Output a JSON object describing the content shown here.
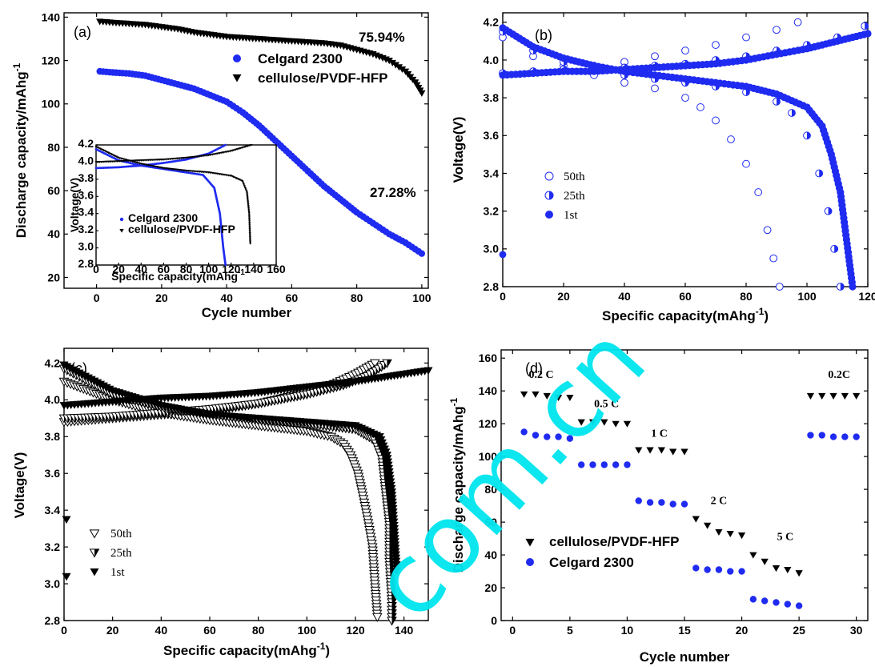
{
  "colors": {
    "blue": "#1f2bf0",
    "black": "#000000",
    "watermark": "#00e5ee"
  },
  "watermark": {
    "text": "com.cn"
  },
  "chart_data": [
    {
      "id": "a",
      "type": "scatter",
      "panel_label": "(a)",
      "xlabel": "Cycle number",
      "ylabel": "Discharge capacity/mAhg",
      "ylabel_sup": "-1",
      "xlim": [
        -10,
        102
      ],
      "ylim": [
        15,
        142
      ],
      "xticks": [
        0,
        20,
        40,
        60,
        80,
        100
      ],
      "yticks": [
        20,
        40,
        60,
        80,
        100,
        120,
        140
      ],
      "annotations": [
        {
          "text": "75.94%",
          "x": 90,
          "y": 132
        },
        {
          "text": "27.28%",
          "x": 90,
          "y": 55
        }
      ],
      "legend": [
        {
          "label": "Celgard 2300",
          "marker": "circle",
          "color": "#1f2bf0"
        },
        {
          "label": "cellulose/PVDF-HFP",
          "marker": "tri-down",
          "color": "#000000"
        }
      ],
      "series": [
        {
          "name": "Celgard 2300",
          "marker": "circle",
          "color": "#1f2bf0",
          "mode": "dense",
          "x": [
            1,
            5,
            10,
            15,
            20,
            25,
            30,
            35,
            40,
            45,
            50,
            55,
            60,
            65,
            70,
            75,
            80,
            85,
            90,
            95,
            100
          ],
          "y": [
            115,
            114.5,
            114,
            113,
            111,
            109,
            107,
            104,
            101,
            96,
            90,
            83,
            76,
            69,
            62,
            56,
            50,
            45,
            40,
            36,
            31
          ]
        },
        {
          "name": "cellulose/PVDF-HFP",
          "marker": "tri-down",
          "color": "#000000",
          "mode": "dense",
          "x": [
            1,
            5,
            10,
            15,
            20,
            25,
            30,
            35,
            40,
            45,
            50,
            55,
            60,
            65,
            70,
            75,
            80,
            85,
            90,
            95,
            98,
            100
          ],
          "y": [
            138,
            137.5,
            137,
            136.5,
            135.5,
            134.5,
            133,
            132,
            131,
            130.5,
            130,
            129.5,
            129,
            128.5,
            128,
            127,
            125,
            123,
            120,
            115,
            110,
            105
          ]
        }
      ],
      "inset": {
        "xlabel": "Specific capacity(mAhg",
        "xlabel_sup": "-1",
        "ylabel": "Voltage(V)",
        "xlim": [
          0,
          160
        ],
        "ylim": [
          2.8,
          4.2
        ],
        "xticks": [
          0,
          20,
          40,
          60,
          80,
          100,
          120,
          140,
          160
        ],
        "yticks": [
          2.8,
          3.0,
          3.2,
          3.4,
          3.6,
          3.8,
          4.0,
          4.2
        ],
        "legend": [
          {
            "label": "Celgard 2300",
            "marker": "circle",
            "color": "#1f2bf0"
          },
          {
            "label": "cellulose/PVDF-HFP",
            "marker": "tri-down",
            "color": "#000000"
          }
        ],
        "series": [
          {
            "name": "Celgard 2300 charge",
            "color": "#1f2bf0",
            "marker": "circle",
            "mode": "dense",
            "x": [
              0,
              20,
              40,
              60,
              80,
              100,
              115
            ],
            "y": [
              3.93,
              3.94,
              3.96,
              3.99,
              4.03,
              4.1,
              4.2
            ]
          },
          {
            "name": "Celgard 2300 discharge",
            "color": "#1f2bf0",
            "marker": "circle",
            "mode": "dense",
            "x": [
              0,
              20,
              40,
              60,
              80,
              95,
              105,
              110,
              113,
              115
            ],
            "y": [
              4.15,
              4.02,
              3.96,
              3.92,
              3.88,
              3.85,
              3.7,
              3.4,
              3.0,
              2.8
            ]
          },
          {
            "name": "cellulose/PVDF-HFP charge",
            "color": "#000000",
            "marker": "tri-down",
            "mode": "dense",
            "x": [
              0,
              20,
              40,
              60,
              80,
              100,
              120,
              138
            ],
            "y": [
              4.0,
              4.01,
              4.02,
              4.03,
              4.05,
              4.08,
              4.13,
              4.2
            ]
          },
          {
            "name": "cellulose/PVDF-HFP discharge",
            "color": "#000000",
            "marker": "tri-down",
            "mode": "dense",
            "x": [
              0,
              20,
              40,
              60,
              80,
              100,
              120,
              130,
              134,
              136,
              137
            ],
            "y": [
              4.18,
              4.05,
              3.98,
              3.93,
              3.9,
              3.88,
              3.84,
              3.78,
              3.65,
              3.4,
              3.05
            ]
          }
        ]
      }
    },
    {
      "id": "b",
      "type": "scatter",
      "panel_label": "(b)",
      "xlabel": "Specific capacity(mAhg",
      "xlabel_sup": "-1",
      "xlabel_tail": ")",
      "ylabel": "Voltage(V)",
      "xlim": [
        0,
        120
      ],
      "ylim": [
        2.8,
        4.25
      ],
      "xticks": [
        0,
        20,
        40,
        60,
        80,
        100,
        120
      ],
      "yticks": [
        2.8,
        3.0,
        3.2,
        3.4,
        3.6,
        3.8,
        4.0,
        4.2
      ],
      "legend": [
        {
          "label": "50th",
          "marker": "circle-open"
        },
        {
          "label": "25th",
          "marker": "circle-half"
        },
        {
          "label": "1st",
          "marker": "circle"
        }
      ],
      "series": [
        {
          "name": "50th charge",
          "marker": "circle-open",
          "color": "#1f2bf0",
          "mode": "sparse",
          "x": [
            0,
            10,
            20,
            30,
            40,
            50,
            60,
            70,
            80,
            90,
            97
          ],
          "y": [
            3.93,
            3.94,
            3.95,
            3.97,
            3.99,
            4.02,
            4.05,
            4.08,
            4.12,
            4.16,
            4.2
          ]
        },
        {
          "name": "50th discharge",
          "marker": "circle-open",
          "color": "#1f2bf0",
          "mode": "sparse",
          "x": [
            0,
            10,
            20,
            30,
            40,
            50,
            60,
            65,
            70,
            75,
            80,
            84,
            87,
            89,
            91
          ],
          "y": [
            4.12,
            4.02,
            3.97,
            3.92,
            3.88,
            3.85,
            3.8,
            3.75,
            3.68,
            3.58,
            3.45,
            3.3,
            3.1,
            2.95,
            2.8
          ]
        },
        {
          "name": "25th charge",
          "marker": "circle-half",
          "color": "#1f2bf0",
          "mode": "sparse",
          "x": [
            0,
            10,
            20,
            30,
            40,
            50,
            60,
            70,
            80,
            90,
            100,
            110,
            119
          ],
          "y": [
            3.93,
            3.94,
            3.95,
            3.95,
            3.96,
            3.97,
            3.98,
            4.0,
            4.02,
            4.05,
            4.08,
            4.12,
            4.18
          ]
        },
        {
          "name": "25th discharge",
          "marker": "circle-half",
          "color": "#1f2bf0",
          "mode": "sparse",
          "x": [
            0,
            10,
            20,
            30,
            40,
            50,
            60,
            70,
            80,
            90,
            95,
            100,
            104,
            107,
            109,
            111
          ],
          "y": [
            4.15,
            4.05,
            3.99,
            3.95,
            3.92,
            3.9,
            3.88,
            3.86,
            3.83,
            3.78,
            3.72,
            3.6,
            3.4,
            3.2,
            3.0,
            2.8
          ]
        },
        {
          "name": "1st charge",
          "marker": "circle",
          "color": "#1f2bf0",
          "mode": "dense",
          "x": [
            0,
            10,
            20,
            30,
            40,
            50,
            60,
            70,
            80,
            90,
            100,
            110,
            120
          ],
          "y": [
            3.92,
            3.93,
            3.94,
            3.94,
            3.95,
            3.96,
            3.97,
            3.98,
            4.0,
            4.03,
            4.06,
            4.1,
            4.14
          ]
        },
        {
          "name": "1st discharge",
          "marker": "circle",
          "color": "#1f2bf0",
          "mode": "dense",
          "x": [
            0,
            10,
            20,
            30,
            40,
            50,
            60,
            70,
            80,
            90,
            100,
            105,
            108,
            111,
            113,
            115
          ],
          "y": [
            4.17,
            4.07,
            4.01,
            3.97,
            3.94,
            3.92,
            3.9,
            3.88,
            3.86,
            3.82,
            3.75,
            3.65,
            3.5,
            3.3,
            3.05,
            2.8
          ]
        },
        {
          "name": "1st start point",
          "marker": "circle",
          "color": "#1f2bf0",
          "mode": "sparse",
          "x": [
            0
          ],
          "y": [
            2.97
          ]
        }
      ]
    },
    {
      "id": "c",
      "type": "scatter",
      "panel_label": "(c)",
      "xlabel": "Specific capacity(mAhg",
      "xlabel_sup": "-1",
      "xlabel_tail": ")",
      "ylabel": "Voltage(V)",
      "xlim": [
        0,
        150
      ],
      "ylim": [
        2.8,
        4.28
      ],
      "xticks": [
        0,
        20,
        40,
        60,
        80,
        100,
        120,
        140
      ],
      "yticks": [
        2.8,
        3.0,
        3.2,
        3.4,
        3.6,
        3.8,
        4.0,
        4.2
      ],
      "legend": [
        {
          "label": "50th",
          "marker": "tri-open"
        },
        {
          "label": "25th",
          "marker": "tri-half"
        },
        {
          "label": "1st",
          "marker": "tri-down"
        }
      ],
      "series": [
        {
          "name": "50th charge",
          "marker": "tri-open",
          "color": "#000000",
          "mode": "dense",
          "x": [
            0,
            20,
            40,
            60,
            80,
            100,
            110,
            120,
            128
          ],
          "y": [
            3.88,
            3.9,
            3.92,
            3.94,
            3.98,
            4.04,
            4.08,
            4.14,
            4.2
          ]
        },
        {
          "name": "50th discharge",
          "marker": "tri-open",
          "color": "#000000",
          "mode": "dense",
          "x": [
            0,
            20,
            40,
            60,
            80,
            100,
            110,
            115,
            118,
            121,
            123,
            125,
            127,
            128,
            129
          ],
          "y": [
            4.1,
            4.0,
            3.93,
            3.89,
            3.86,
            3.83,
            3.8,
            3.76,
            3.7,
            3.6,
            3.48,
            3.35,
            3.2,
            3.0,
            2.82
          ]
        },
        {
          "name": "25th charge",
          "marker": "tri-half",
          "color": "#000000",
          "mode": "dense",
          "x": [
            0,
            20,
            40,
            60,
            80,
            100,
            115,
            125,
            133
          ],
          "y": [
            3.9,
            3.91,
            3.93,
            3.95,
            3.98,
            4.03,
            4.08,
            4.13,
            4.2
          ]
        },
        {
          "name": "25th discharge",
          "marker": "tri-half",
          "color": "#000000",
          "mode": "dense",
          "x": [
            0,
            20,
            40,
            60,
            80,
            100,
            120,
            128,
            131,
            132,
            134,
            134,
            135,
            135
          ],
          "y": [
            4.17,
            4.03,
            3.96,
            3.92,
            3.89,
            3.87,
            3.84,
            3.78,
            3.68,
            3.55,
            3.32,
            3.12,
            2.9,
            2.8
          ]
        },
        {
          "name": "1st charge",
          "marker": "tri-down",
          "color": "#000000",
          "mode": "dense",
          "x": [
            0,
            20,
            40,
            60,
            80,
            100,
            120,
            140,
            150
          ],
          "y": [
            3.97,
            3.99,
            4.01,
            4.02,
            4.04,
            4.07,
            4.1,
            4.14,
            4.16
          ]
        },
        {
          "name": "1st discharge",
          "marker": "tri-down",
          "color": "#000000",
          "mode": "dense",
          "x": [
            0,
            20,
            40,
            60,
            80,
            100,
            120,
            130,
            133,
            135,
            136,
            137
          ],
          "y": [
            4.19,
            4.05,
            3.97,
            3.92,
            3.9,
            3.88,
            3.86,
            3.8,
            3.7,
            3.5,
            3.3,
            3.07
          ]
        },
        {
          "name": "1st start points",
          "marker": "tri-down",
          "color": "#000000",
          "mode": "sparse",
          "x": [
            1,
            1
          ],
          "y": [
            3.35,
            3.04
          ]
        }
      ]
    },
    {
      "id": "d",
      "type": "scatter",
      "panel_label": "(d)",
      "xlabel": "Cycle number",
      "ylabel": "Discharge capacity/mAhg",
      "ylabel_sup": "-1",
      "xlim": [
        -1,
        31
      ],
      "ylim": [
        0,
        165
      ],
      "xticks": [
        0,
        5,
        10,
        15,
        20,
        25,
        30
      ],
      "yticks": [
        0,
        20,
        40,
        60,
        80,
        100,
        120,
        140,
        160
      ],
      "annotations": [
        {
          "text": "0.2 C",
          "x": 2.5,
          "y": 148
        },
        {
          "text": "0.5 C",
          "x": 8.2,
          "y": 130
        },
        {
          "text": "1 C",
          "x": 12.8,
          "y": 112
        },
        {
          "text": "2 C",
          "x": 18,
          "y": 71
        },
        {
          "text": "5 C",
          "x": 23.8,
          "y": 49
        },
        {
          "text": "0.2C",
          "x": 28.5,
          "y": 148
        }
      ],
      "legend": [
        {
          "label": "cellulose/PVDF-HFP",
          "marker": "tri-down",
          "color": "#000000"
        },
        {
          "label": "Celgard 2300",
          "marker": "circle",
          "color": "#1f2bf0"
        }
      ],
      "series": [
        {
          "name": "cellulose/PVDF-HFP",
          "marker": "tri-down",
          "color": "#000000",
          "mode": "sparse",
          "x": [
            1,
            2,
            3,
            4,
            5,
            6,
            7,
            8,
            9,
            10,
            11,
            12,
            13,
            14,
            15,
            16,
            17,
            18,
            19,
            20,
            21,
            22,
            23,
            24,
            25,
            26,
            27,
            28,
            29,
            30
          ],
          "y": [
            138,
            138,
            137,
            136,
            136,
            121,
            121,
            121,
            120,
            120,
            104,
            104,
            104,
            103,
            103,
            62,
            58,
            54,
            53,
            52,
            40,
            36,
            32,
            31,
            29,
            137,
            137,
            137,
            137,
            137
          ]
        },
        {
          "name": "Celgard 2300",
          "marker": "circle",
          "color": "#1f2bf0",
          "mode": "sparse",
          "x": [
            1,
            2,
            3,
            4,
            5,
            6,
            7,
            8,
            9,
            10,
            11,
            12,
            13,
            14,
            15,
            16,
            17,
            18,
            19,
            20,
            21,
            22,
            23,
            24,
            25,
            26,
            27,
            28,
            29,
            30
          ],
          "y": [
            115,
            113,
            112,
            112,
            111,
            95,
            95,
            95,
            95,
            95,
            73,
            72,
            72,
            71,
            71,
            32,
            31,
            31,
            30,
            30,
            13,
            12,
            11,
            10,
            9,
            113,
            113,
            112,
            112,
            112
          ]
        }
      ]
    }
  ]
}
